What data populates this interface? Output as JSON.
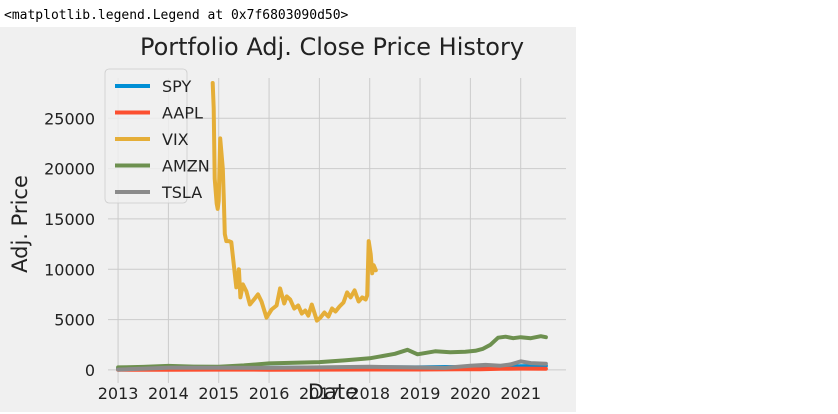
{
  "output_text": "<matplotlib.legend.Legend at 0x7f6803090d50>",
  "chart_data": {
    "type": "line",
    "title": "Portfolio Adj. Close Price History",
    "xlabel": "Date",
    "ylabel": "Adj. Price",
    "x_ticks": [
      "2013",
      "2014",
      "2015",
      "2016",
      "2017",
      "2018",
      "2019",
      "2020",
      "2021"
    ],
    "y_ticks": [
      "0",
      "5000",
      "10000",
      "15000",
      "20000",
      "25000"
    ],
    "xlim": [
      2012.8,
      2021.9
    ],
    "ylim": [
      -1300,
      29000
    ],
    "grid": true,
    "legend_position": "top-left",
    "style": "fivethirtyeight",
    "series": [
      {
        "name": "SPY",
        "color": "#008fd5",
        "x": [
          2013.0,
          2014.0,
          2015.0,
          2016.0,
          2017.0,
          2018.0,
          2018.9,
          2019.5,
          2020.2,
          2020.5,
          2021.0,
          2021.5
        ],
        "y": [
          140,
          180,
          205,
          200,
          225,
          270,
          250,
          290,
          260,
          310,
          370,
          420
        ]
      },
      {
        "name": "AAPL",
        "color": "#fc4f30",
        "x": [
          2013.0,
          2014.0,
          2015.0,
          2016.0,
          2017.0,
          2018.0,
          2019.0,
          2019.8,
          2020.2,
          2020.6,
          2021.0,
          2021.5
        ],
        "y": [
          20,
          20,
          28,
          25,
          30,
          42,
          40,
          65,
          70,
          110,
          130,
          125
        ]
      },
      {
        "name": "VIX",
        "color": "#e5ae38",
        "x": [
          2014.88,
          2014.9,
          2014.92,
          2014.96,
          2014.98,
          2015.0,
          2015.03,
          2015.08,
          2015.1,
          2015.12,
          2015.15,
          2015.2,
          2015.25,
          2015.35,
          2015.4,
          2015.43,
          2015.48,
          2015.55,
          2015.62,
          2015.7,
          2015.78,
          2015.85,
          2015.95,
          2016.05,
          2016.15,
          2016.22,
          2016.3,
          2016.35,
          2016.42,
          2016.5,
          2016.58,
          2016.65,
          2016.72,
          2016.78,
          2016.85,
          2016.95,
          2017.02,
          2017.1,
          2017.18,
          2017.25,
          2017.32,
          2017.4,
          2017.48,
          2017.55,
          2017.62,
          2017.7,
          2017.78,
          2017.85,
          2017.92,
          2017.95,
          2017.98,
          2018.02,
          2018.05,
          2018.08,
          2018.12
        ],
        "y": [
          28500,
          26000,
          19000,
          16500,
          16000,
          16800,
          23000,
          20000,
          17000,
          13500,
          12800,
          12800,
          12700,
          8200,
          10000,
          7200,
          8500,
          7800,
          6500,
          7000,
          7500,
          6800,
          5200,
          6000,
          6400,
          8100,
          6600,
          7300,
          7000,
          6100,
          6400,
          5600,
          5900,
          5400,
          6500,
          4900,
          5200,
          5700,
          5300,
          6100,
          5800,
          6300,
          6700,
          7700,
          7200,
          7900,
          6800,
          7200,
          7000,
          7400,
          12800,
          11500,
          9600,
          10400,
          9900
        ]
      },
      {
        "name": "AMZN",
        "color": "#6d904f",
        "x": [
          2013.0,
          2013.5,
          2014.0,
          2014.5,
          2015.0,
          2015.5,
          2016.0,
          2016.5,
          2017.0,
          2017.5,
          2018.0,
          2018.5,
          2018.75,
          2018.95,
          2019.3,
          2019.6,
          2019.9,
          2020.1,
          2020.25,
          2020.4,
          2020.55,
          2020.7,
          2020.85,
          2021.0,
          2021.2,
          2021.4,
          2021.5
        ],
        "y": [
          250,
          300,
          400,
          330,
          310,
          450,
          650,
          720,
          780,
          950,
          1150,
          1600,
          2000,
          1550,
          1850,
          1750,
          1800,
          1900,
          2100,
          2500,
          3200,
          3300,
          3150,
          3250,
          3150,
          3350,
          3250
        ]
      },
      {
        "name": "TSLA",
        "color": "#8b8b8b",
        "x": [
          2013.0,
          2014.0,
          2015.0,
          2016.0,
          2017.0,
          2018.0,
          2019.0,
          2019.5,
          2020.0,
          2020.3,
          2020.6,
          2020.8,
          2021.0,
          2021.2,
          2021.5
        ],
        "y": [
          35,
          220,
          210,
          200,
          250,
          310,
          240,
          200,
          420,
          500,
          420,
          550,
          850,
          680,
          620
        ]
      }
    ]
  }
}
